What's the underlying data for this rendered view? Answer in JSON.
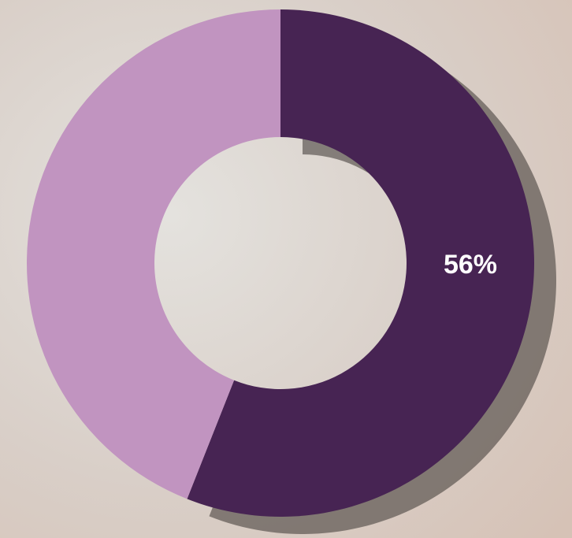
{
  "chart_data": {
    "type": "donut",
    "values": [
      56,
      44
    ],
    "value_labels": [
      "56%",
      null
    ],
    "colors": [
      "#472453",
      "#c194c0"
    ]
  }
}
